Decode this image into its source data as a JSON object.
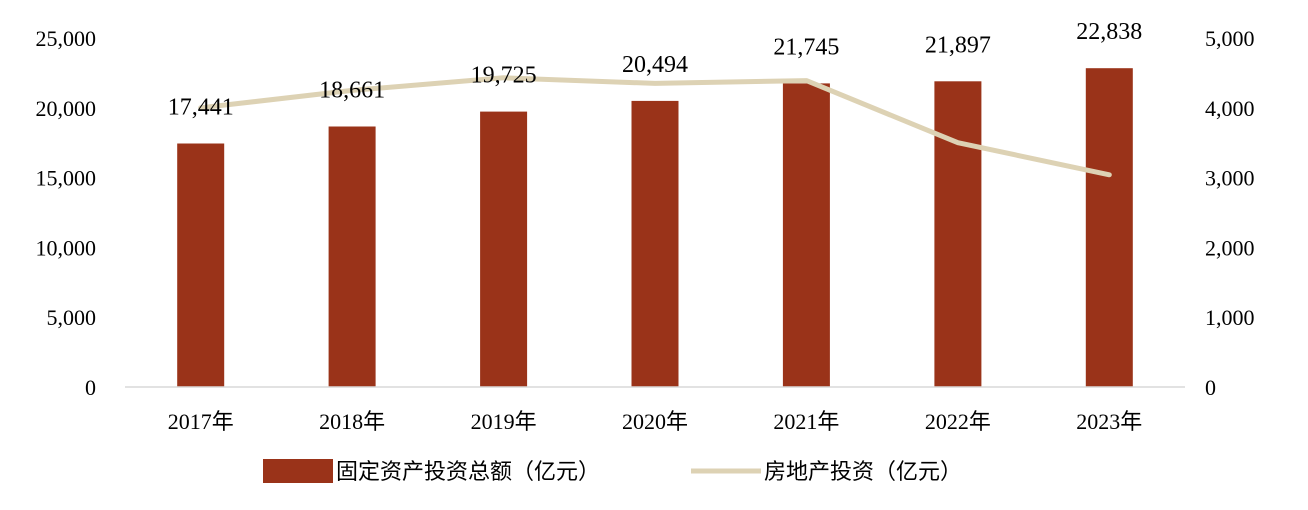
{
  "chart_data": {
    "type": "bar",
    "categories": [
      "2017年",
      "2018年",
      "2019年",
      "2020年",
      "2021年",
      "2022年",
      "2023年"
    ],
    "series": [
      {
        "name": "固定资产投资总额（亿元）",
        "type": "bar",
        "axis": "left",
        "color": "#9a3319",
        "values": [
          17441,
          18661,
          19725,
          20494,
          21745,
          21897,
          22838
        ],
        "labels": [
          "17,441",
          "18,661",
          "19,725",
          "20,494",
          "21,745",
          "21,897",
          "22,838"
        ]
      },
      {
        "name": "房地产投资（亿元）",
        "type": "line",
        "axis": "right",
        "color": "#ddd2b4",
        "values": [
          4000,
          4250,
          4430,
          4350,
          4390,
          3500,
          3040
        ]
      }
    ],
    "y_left": {
      "ylim": [
        0,
        25000
      ],
      "ticks": [
        "0",
        "5,000",
        "10,000",
        "15,000",
        "20,000",
        "25,000"
      ]
    },
    "y_right": {
      "ylim": [
        0,
        5000
      ],
      "ticks": [
        "0",
        "1,000",
        "2,000",
        "3,000",
        "4,000",
        "5,000"
      ]
    },
    "grid": false,
    "legend": "bottom"
  }
}
